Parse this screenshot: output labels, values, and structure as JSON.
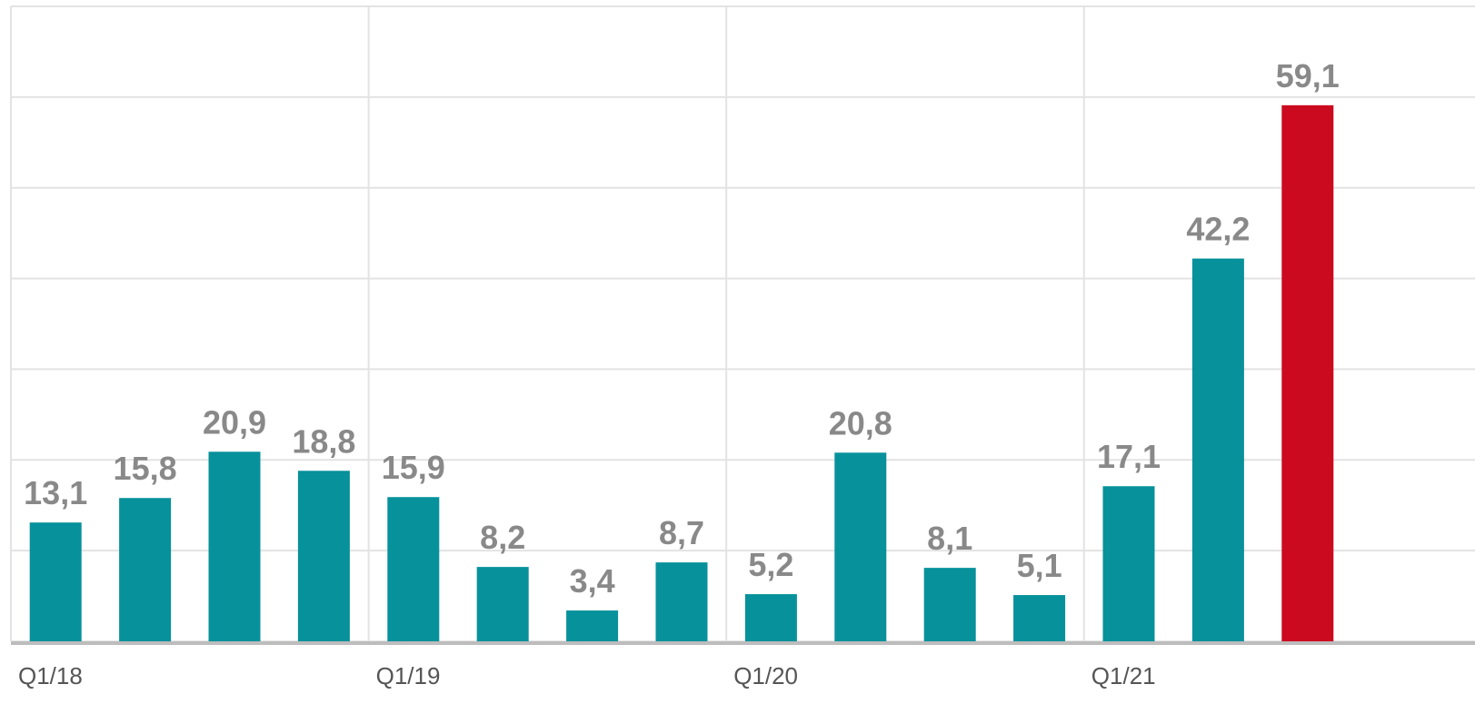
{
  "chart_data": {
    "type": "bar",
    "categories": [
      "Q1/18",
      null,
      null,
      null,
      "Q1/19",
      null,
      null,
      null,
      "Q1/20",
      null,
      null,
      null,
      "Q1/21",
      null,
      null
    ],
    "values": [
      13.1,
      15.8,
      20.9,
      18.8,
      15.9,
      8.2,
      3.4,
      8.7,
      5.2,
      20.8,
      8.1,
      5.1,
      17.1,
      42.2,
      59.1
    ],
    "value_labels": [
      "13,1",
      "15,8",
      "20,9",
      "18,8",
      "15,9",
      "8,2",
      "3,4",
      "8,7",
      "5,2",
      "20,8",
      "8,1",
      "5,1",
      "17,1",
      "42,2",
      "59,1"
    ],
    "colors": [
      "#07919b",
      "#07919b",
      "#07919b",
      "#07919b",
      "#07919b",
      "#07919b",
      "#07919b",
      "#07919b",
      "#07919b",
      "#07919b",
      "#07919b",
      "#07919b",
      "#07919b",
      "#07919b",
      "#cc0a1f"
    ],
    "ylim": [
      0,
      70
    ],
    "yticks": [
      0,
      10,
      20,
      30,
      40,
      50,
      60,
      70
    ],
    "grid": true
  }
}
